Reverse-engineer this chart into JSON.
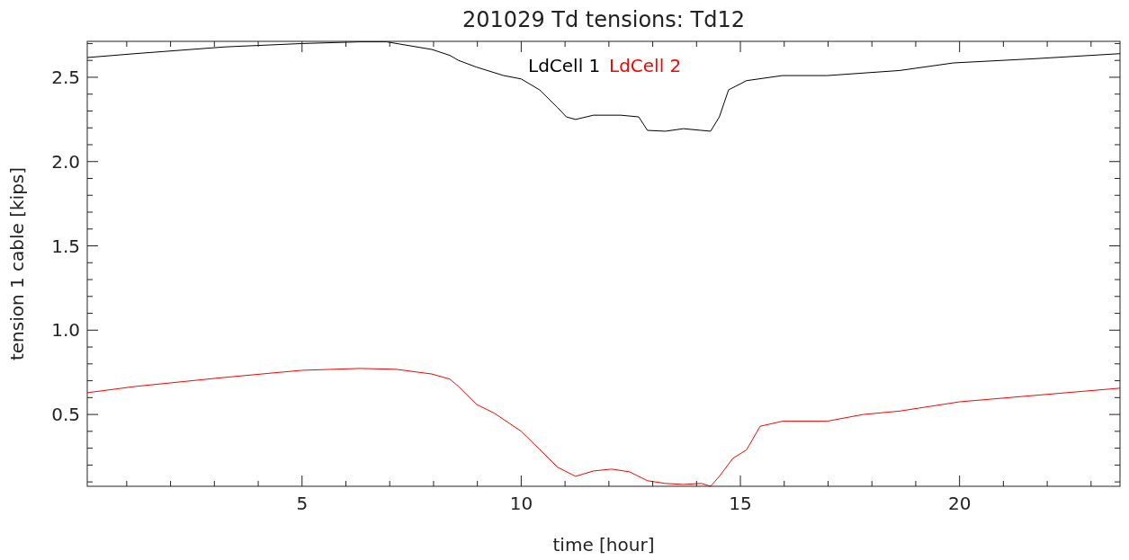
{
  "chart_data": {
    "type": "line",
    "title": "201029 Td tensions: Td12",
    "xlabel": "time [hour]",
    "ylabel": "tension 1 cable [kips]",
    "xlim": [
      0.1,
      23.66
    ],
    "ylim": [
      0.074,
      2.713
    ],
    "xticks": [
      {
        "value": 1,
        "label": null
      },
      {
        "value": 2,
        "label": null
      },
      {
        "value": 3,
        "label": null
      },
      {
        "value": 4,
        "label": null
      },
      5,
      {
        "value": 6,
        "label": null
      },
      {
        "value": 7,
        "label": null
      },
      {
        "value": 8,
        "label": null
      },
      {
        "value": 9,
        "label": null
      },
      10,
      {
        "value": 11,
        "label": null
      },
      {
        "value": 12,
        "label": null
      },
      {
        "value": 13,
        "label": null
      },
      {
        "value": 14,
        "label": null
      },
      15,
      {
        "value": 16,
        "label": null
      },
      {
        "value": 17,
        "label": null
      },
      {
        "value": 18,
        "label": null
      },
      {
        "value": 19,
        "label": null
      },
      20,
      {
        "value": 21,
        "label": null
      },
      {
        "value": 22,
        "label": null
      },
      {
        "value": 23,
        "label": null
      }
    ],
    "yticks": [
      {
        "value": 0.1,
        "label": null
      },
      {
        "value": 0.2,
        "label": null
      },
      {
        "value": 0.3,
        "label": null
      },
      {
        "value": 0.4,
        "label": null
      },
      {
        "value": 0.5,
        "label": "0.5"
      },
      {
        "value": 0.6,
        "label": null
      },
      {
        "value": 0.7,
        "label": null
      },
      {
        "value": 0.8,
        "label": null
      },
      {
        "value": 0.9,
        "label": null
      },
      {
        "value": 1.0,
        "label": "1.0"
      },
      {
        "value": 1.1,
        "label": null
      },
      {
        "value": 1.2,
        "label": null
      },
      {
        "value": 1.3,
        "label": null
      },
      {
        "value": 1.4,
        "label": null
      },
      {
        "value": 1.5,
        "label": "1.5"
      },
      {
        "value": 1.6,
        "label": null
      },
      {
        "value": 1.7,
        "label": null
      },
      {
        "value": 1.8,
        "label": null
      },
      {
        "value": 1.9,
        "label": null
      },
      {
        "value": 2.0,
        "label": "2.0"
      },
      {
        "value": 2.1,
        "label": null
      },
      {
        "value": 2.2,
        "label": null
      },
      {
        "value": 2.3,
        "label": null
      },
      {
        "value": 2.4,
        "label": null
      },
      {
        "value": 2.5,
        "label": "2.5"
      },
      {
        "value": 2.6,
        "label": null
      },
      {
        "value": 2.7,
        "label": null
      }
    ],
    "grid": false,
    "legend": "top",
    "series": [
      {
        "name": "LdCell 1",
        "color": "#000000",
        "x": [
          0.1,
          1.19,
          3.24,
          5.0,
          6.32,
          6.93,
          7.96,
          8.37,
          8.57,
          8.98,
          9.6,
          10.0,
          10.42,
          10.83,
          11.03,
          11.24,
          11.65,
          12.27,
          12.68,
          12.88,
          13.29,
          13.7,
          14.11,
          14.32,
          14.52,
          14.73,
          15.14,
          15.96,
          16.98,
          18.63,
          19.86,
          21.71,
          23.66
        ],
        "values": [
          2.617,
          2.64,
          2.68,
          2.7,
          2.71,
          2.71,
          2.665,
          2.63,
          2.6,
          2.56,
          2.51,
          2.49,
          2.425,
          2.32,
          2.265,
          2.25,
          2.275,
          2.275,
          2.265,
          2.185,
          2.18,
          2.195,
          2.185,
          2.18,
          2.265,
          2.425,
          2.48,
          2.51,
          2.51,
          2.54,
          2.585,
          2.61,
          2.64
        ]
      },
      {
        "name": "LdCell 2",
        "color": "#ff0000",
        "x": [
          0.1,
          1.19,
          3.24,
          5.0,
          6.32,
          7.14,
          7.96,
          8.37,
          8.57,
          8.98,
          9.39,
          10.0,
          10.42,
          10.83,
          11.24,
          11.65,
          12.06,
          12.47,
          12.88,
          13.29,
          13.7,
          14.11,
          14.32,
          14.52,
          14.83,
          15.14,
          15.45,
          15.96,
          16.98,
          17.8,
          18.63,
          20.0,
          21.71,
          23.66
        ],
        "values": [
          0.629,
          0.666,
          0.72,
          0.762,
          0.773,
          0.768,
          0.74,
          0.71,
          0.666,
          0.56,
          0.507,
          0.4,
          0.293,
          0.187,
          0.133,
          0.165,
          0.176,
          0.16,
          0.107,
          0.091,
          0.085,
          0.091,
          0.074,
          0.133,
          0.24,
          0.29,
          0.43,
          0.46,
          0.46,
          0.5,
          0.52,
          0.575,
          0.613,
          0.656
        ]
      }
    ]
  }
}
